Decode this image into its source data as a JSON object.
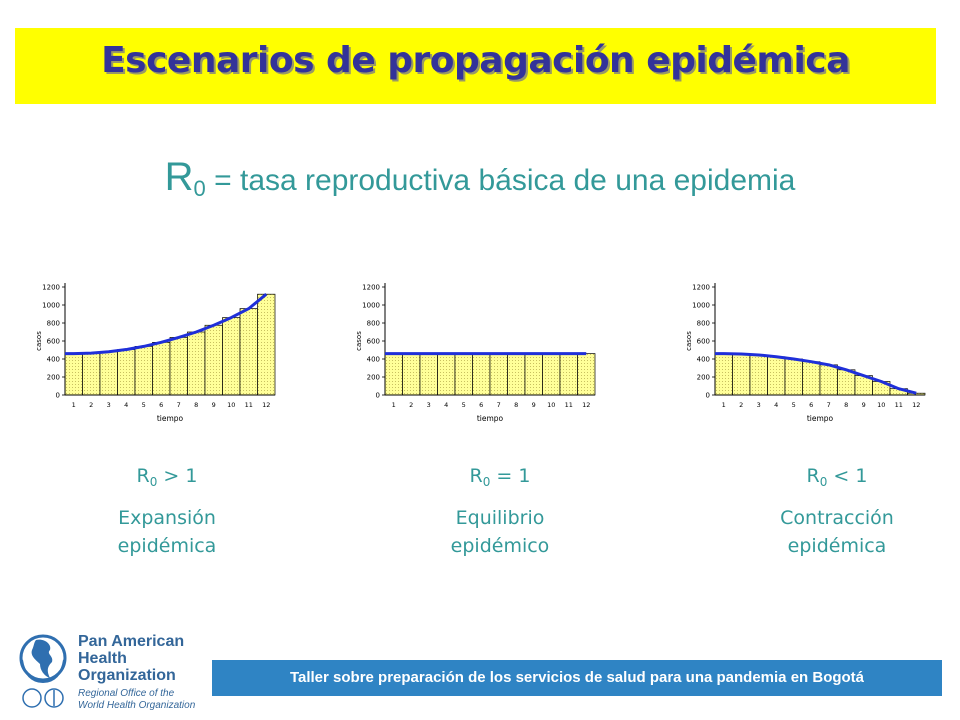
{
  "title": "Escenarios de propagación epidémica",
  "subtitle": {
    "r": "R",
    "sub": "0",
    "text": " = tasa reproductiva básica de una epidemia"
  },
  "chart_data": [
    {
      "type": "bar",
      "categories": [
        "1",
        "2",
        "3",
        "4",
        "5",
        "6",
        "7",
        "8",
        "9",
        "10",
        "11",
        "12"
      ],
      "values": [
        460,
        465,
        480,
        505,
        540,
        585,
        640,
        700,
        775,
        860,
        960,
        1120
      ],
      "ylim": [
        0,
        1200
      ],
      "yticks": [
        "0",
        "200",
        "400",
        "600",
        "800",
        "1000",
        "1200"
      ],
      "xlabel": "tiempo",
      "ylabel": "casos",
      "line_color": "#1f2fd9",
      "bar_color": "#ffff99"
    },
    {
      "type": "bar",
      "categories": [
        "1",
        "2",
        "3",
        "4",
        "5",
        "6",
        "7",
        "8",
        "9",
        "10",
        "11",
        "12"
      ],
      "values": [
        460,
        460,
        460,
        460,
        460,
        460,
        460,
        460,
        460,
        460,
        460,
        460
      ],
      "ylim": [
        0,
        1200
      ],
      "yticks": [
        "0",
        "200",
        "400",
        "600",
        "800",
        "1000",
        "1200"
      ],
      "xlabel": "tiempo",
      "ylabel": "casos",
      "line_color": "#1f2fd9",
      "bar_color": "#ffff99"
    },
    {
      "type": "bar",
      "categories": [
        "1",
        "2",
        "3",
        "4",
        "5",
        "6",
        "7",
        "8",
        "9",
        "10",
        "11",
        "12"
      ],
      "values": [
        460,
        455,
        445,
        425,
        400,
        370,
        335,
        280,
        215,
        150,
        70,
        20
      ],
      "ylim": [
        0,
        1200
      ],
      "yticks": [
        "0",
        "200",
        "400",
        "600",
        "800",
        "1000",
        "1200"
      ],
      "xlabel": "tiempo",
      "ylabel": "casos",
      "line_color": "#1f2fd9",
      "bar_color": "#ffff99"
    }
  ],
  "captions": [
    {
      "r": "R",
      "sub": "0",
      "cond": " > 1",
      "line1": "Expansión",
      "line2": "epidémica"
    },
    {
      "r": "R",
      "sub": "0",
      "cond": " = 1",
      "line1": "Equilibrio",
      "line2": "epidémico"
    },
    {
      "r": "R",
      "sub": "0",
      "cond": " < 1",
      "line1": "Contracción",
      "line2": "epidémica"
    }
  ],
  "logo": {
    "line1": "Pan American",
    "line2": "Health",
    "line3": "Organization",
    "sub1": "Regional Office of the",
    "sub2": "World Health Organization"
  },
  "footer": "Taller sobre preparación de los servicios de salud para una pandemia en Bogotá"
}
